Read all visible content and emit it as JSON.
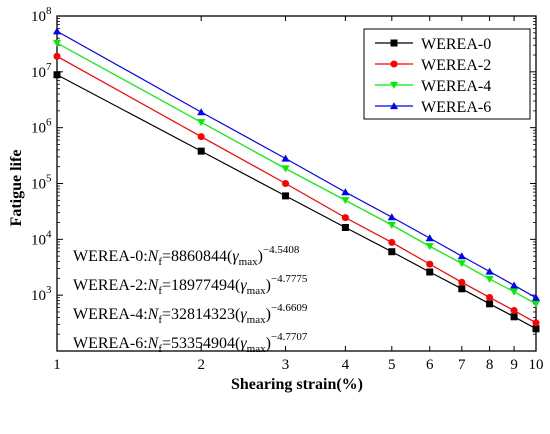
{
  "chart_data": {
    "type": "line",
    "title": "",
    "xlabel": "Shearing strain(%)",
    "ylabel": "Fatigue life",
    "x_scale": "log",
    "y_scale": "log",
    "xlim": [
      1,
      10
    ],
    "ylim": [
      100,
      100000000
    ],
    "grid": false,
    "legend_position": "top-right",
    "x_ticks": [
      "1",
      "2",
      "3",
      "4",
      "5",
      "6",
      "7",
      "8",
      "9",
      "10"
    ],
    "y_ticks": [
      {
        "base": "10",
        "exp": "3"
      },
      {
        "base": "10",
        "exp": "4"
      },
      {
        "base": "10",
        "exp": "5"
      },
      {
        "base": "10",
        "exp": "6"
      },
      {
        "base": "10",
        "exp": "7"
      },
      {
        "base": "10",
        "exp": "8"
      }
    ],
    "x": [
      1,
      2,
      3,
      4,
      5,
      6,
      7,
      8,
      9,
      10
    ],
    "series": [
      {
        "name": "WEREA-0",
        "color": "#000000",
        "marker": "square",
        "values": [
          8860844,
          380000,
          60000,
          16300,
          6000,
          2600,
          1300,
          700,
          410,
          250
        ]
      },
      {
        "name": "WEREA-2",
        "color": "#ff0000",
        "marker": "circle",
        "values": [
          18977494,
          690000,
          100000,
          24500,
          8800,
          3600,
          1700,
          910,
          530,
          320
        ]
      },
      {
        "name": "WEREA-4",
        "color": "#00ee00",
        "marker": "triangle-down",
        "values": [
          32814323,
          1250000,
          185000,
          50000,
          18000,
          7500,
          3700,
          1950,
          1150,
          700
        ]
      },
      {
        "name": "WEREA-6",
        "color": "#0000ff",
        "marker": "triangle-up",
        "values": [
          53354904,
          1900000,
          280000,
          70000,
          25000,
          10500,
          5000,
          2650,
          1500,
          900
        ]
      }
    ],
    "equations": [
      {
        "label": "WEREA-0:",
        "lhs": "N",
        "lhs_sub": "f",
        "coef": "=8860844(",
        "var": "γ",
        "var_sub": "max",
        "close": ")",
        "exp": "−4.5408"
      },
      {
        "label": "WEREA-2:",
        "lhs": "N",
        "lhs_sub": "f",
        "coef": "=18977494(",
        "var": "γ",
        "var_sub": "max",
        "close": ")",
        "exp": "−4.7775"
      },
      {
        "label": "WEREA-4:",
        "lhs": "N",
        "lhs_sub": "f",
        "coef": "=32814323(",
        "var": "γ",
        "var_sub": "max",
        "close": ")",
        "exp": "−4.6609"
      },
      {
        "label": "WEREA-6:",
        "lhs": "N",
        "lhs_sub": "f",
        "coef": "=53354904(",
        "var": "γ",
        "var_sub": "max",
        "close": ")",
        "exp": "−4.7707"
      }
    ]
  }
}
